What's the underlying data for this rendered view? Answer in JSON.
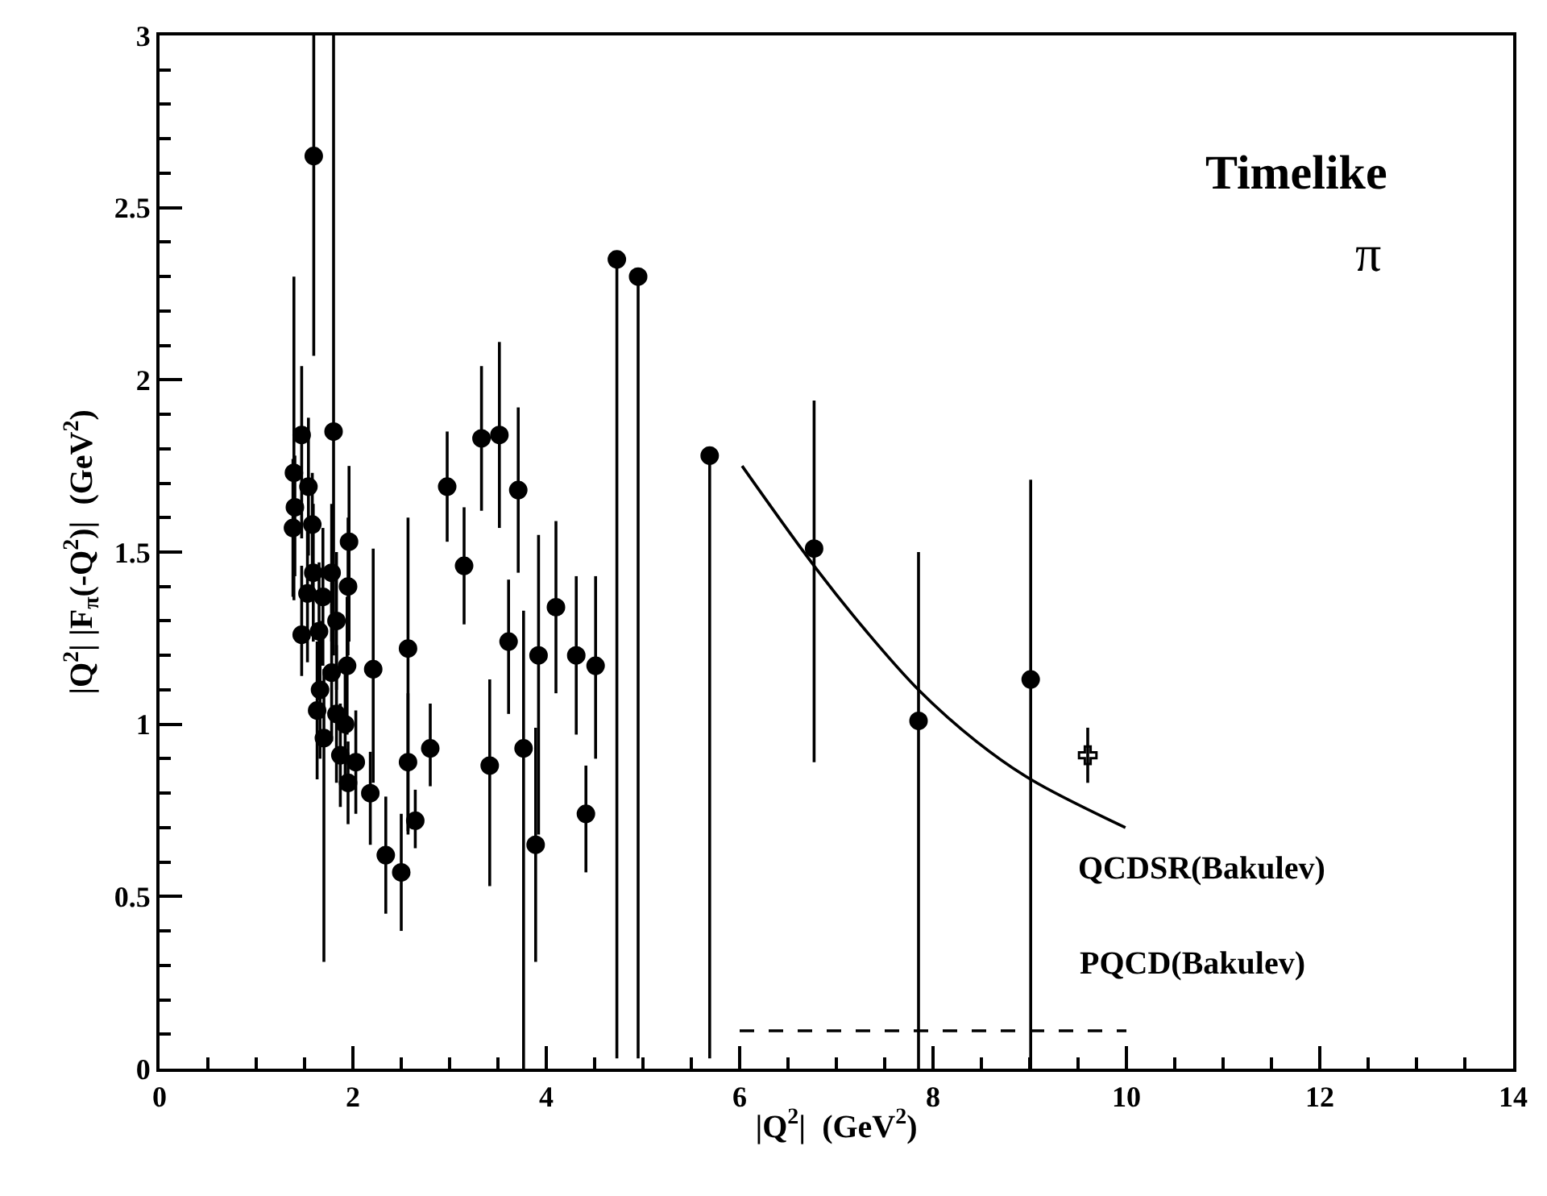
{
  "chart_data": {
    "type": "scatter",
    "xlabel": "|Q$^{2}$|  (GeV$^{2}$)",
    "ylabel": "|Q$^{2}$| |F$_{π}$(-Q$^{2}$)|  (GeV$^{2}$)",
    "xlim": [
      0,
      14
    ],
    "ylim": [
      0,
      3
    ],
    "xticks": [
      0,
      2,
      4,
      6,
      8,
      10,
      12,
      14
    ],
    "yticks": [
      0,
      0.5,
      1,
      1.5,
      2,
      2.5,
      3
    ],
    "annotations": [
      "Timelike",
      "π"
    ],
    "series": [
      {
        "marker": "circle",
        "color": "#000000",
        "x": [
          1.595,
          1.8,
          1.47,
          1.39,
          1.54,
          1.4,
          1.38,
          1.58,
          1.96,
          1.95,
          1.59,
          1.78,
          1.53,
          1.69,
          1.83,
          1.47,
          1.65,
          1.94,
          1.78,
          2.21,
          2.57,
          1.66,
          1.63,
          1.83,
          1.92,
          1.7,
          1.87,
          2.03,
          1.95,
          2.18,
          2.8,
          2.57,
          2.645,
          2.34,
          2.5,
          2.975,
          3.15,
          3.33,
          3.515,
          3.71,
          4.1,
          4.31,
          4.51,
          3.89
        ],
        "values": [
          2.65,
          1.85,
          1.84,
          1.73,
          1.69,
          1.63,
          1.57,
          1.58,
          1.53,
          1.4,
          1.44,
          1.44,
          1.38,
          1.37,
          1.3,
          1.26,
          1.27,
          1.17,
          1.15,
          1.16,
          1.22,
          1.1,
          1.04,
          1.03,
          1.0,
          0.96,
          0.91,
          0.89,
          0.83,
          0.8,
          0.93,
          0.89,
          0.72,
          0.62,
          0.57,
          1.69,
          1.46,
          1.83,
          1.84,
          1.68,
          1.34,
          1.2,
          1.17,
          0.65
        ],
        "errors": [
          [
            2.07,
            3
          ],
          [
            1.2,
            3
          ],
          [
            1.54,
            2.04
          ],
          [
            1.36,
            2.3
          ],
          [
            1.49,
            1.89
          ],
          [
            1.43,
            1.78
          ],
          [
            1.37,
            1.77
          ],
          [
            1.38,
            1.73
          ],
          [
            1.24,
            1.75
          ],
          [
            1.2,
            1.6
          ],
          [
            1.24,
            1.64
          ],
          [
            1.24,
            1.64
          ],
          [
            1.18,
            1.58
          ],
          [
            1.17,
            1.57
          ],
          [
            1.1,
            1.5
          ],
          [
            1.14,
            1.46
          ],
          [
            1.07,
            1.47
          ],
          [
            0.97,
            1.37
          ],
          [
            0.95,
            1.35
          ],
          [
            0.83,
            1.51
          ],
          [
            0.68,
            1.6
          ],
          [
            0.9,
            1.3
          ],
          [
            0.84,
            1.24
          ],
          [
            0.83,
            1.23
          ],
          [
            0.85,
            1.15
          ],
          [
            0.31,
            1.16
          ],
          [
            0.76,
            1.06
          ],
          [
            0.74,
            1.04
          ],
          [
            0.71,
            0.95
          ],
          [
            0.65,
            0.92
          ],
          [
            0.82,
            1.06
          ],
          [
            0.69,
            1.09
          ],
          [
            0.64,
            0.81
          ],
          [
            0.45,
            0.79
          ],
          [
            0.4,
            0.74
          ],
          [
            1.53,
            1.85
          ],
          [
            1.29,
            1.63
          ],
          [
            1.62,
            2.04
          ],
          [
            1.57,
            2.11
          ],
          [
            1.44,
            1.92
          ],
          [
            1.09,
            1.59
          ],
          [
            0.97,
            1.43
          ],
          [
            0.9,
            1.43
          ],
          [
            0.31,
            0.99
          ]
        ]
      },
      {
        "marker": "circle",
        "color": "#000000",
        "x": [
          3.415,
          3.61,
          3.765,
          3.92,
          4.41,
          6.77,
          7.85,
          9.01
        ],
        "values": [
          0.88,
          1.24,
          0.93,
          1.2,
          0.74,
          1.51,
          1.01,
          1.13
        ],
        "errors": [
          [
            0.53,
            1.13
          ],
          [
            1.03,
            1.42
          ],
          [
            0,
            1.33
          ],
          [
            0.68,
            1.55
          ],
          [
            0.57,
            0.88
          ],
          [
            0.89,
            1.94
          ],
          [
            0,
            1.5
          ],
          [
            0,
            1.71
          ]
        ]
      },
      {
        "marker": "cross",
        "color": "#000000",
        "x": [
          9.6
        ],
        "values": [
          0.91
        ],
        "errors": [
          [
            0.83,
            0.99
          ]
        ]
      },
      {
        "marker": "circle",
        "color": "#000000",
        "x": [
          4.73,
          4.95,
          5.69
        ],
        "values": [
          2.35,
          2.3,
          1.78
        ],
        "errors": [
          [
            0.03,
            2.35
          ],
          [
            0.03,
            2.3
          ],
          [
            0.03,
            1.78
          ]
        ]
      },
      {
        "type": "line",
        "name": "QCDSR(Bakulev)",
        "color": "#000000",
        "line_style": "solid",
        "x": [
          6.025,
          6.77,
          7.31,
          7.85,
          8.45,
          9.01,
          9.99
        ],
        "values": [
          1.75,
          1.46,
          1.27,
          1.1,
          0.95,
          0.84,
          0.7
        ]
      },
      {
        "type": "line",
        "name": "PQCD(Bakulev)",
        "color": "#000000",
        "line_style": "dashed",
        "x": [
          6.0,
          10.0
        ],
        "values": [
          0.11,
          0.11
        ]
      }
    ]
  }
}
